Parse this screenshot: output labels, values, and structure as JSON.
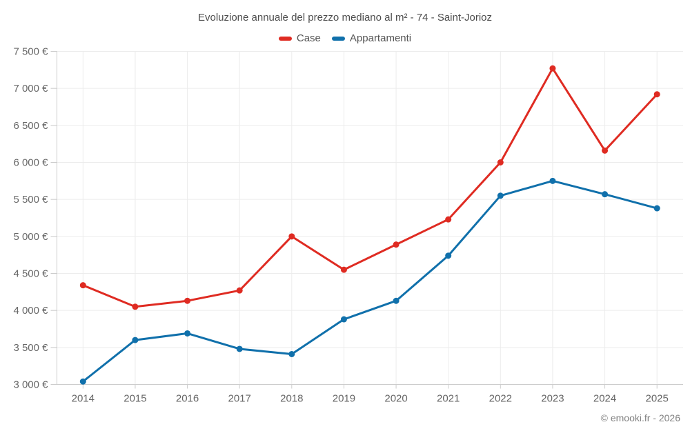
{
  "chart_data": {
    "type": "line",
    "title": "Evoluzione annuale del prezzo mediano al m² - 74 - Saint-Jorioz",
    "categories": [
      "2014",
      "2015",
      "2016",
      "2017",
      "2018",
      "2019",
      "2020",
      "2021",
      "2022",
      "2023",
      "2024",
      "2025"
    ],
    "series": [
      {
        "name": "Case",
        "color": "#df2b22",
        "values": [
          4340,
          4050,
          4130,
          4270,
          5000,
          4550,
          4890,
          5230,
          6000,
          7270,
          6160,
          6920
        ]
      },
      {
        "name": "Appartamenti",
        "color": "#1070ab",
        "values": [
          3040,
          3600,
          3690,
          3480,
          3410,
          3880,
          4130,
          4740,
          5550,
          5750,
          5570,
          5380
        ]
      }
    ],
    "ylim": [
      3000,
      7500
    ],
    "y_ticks": [
      {
        "value": 7500,
        "label": "7 500 €"
      },
      {
        "value": 7000,
        "label": "7 000 €"
      },
      {
        "value": 6500,
        "label": "6 500 €"
      },
      {
        "value": 6000,
        "label": "6 000 €"
      },
      {
        "value": 5500,
        "label": "5 500 €"
      },
      {
        "value": 5000,
        "label": "5 000 €"
      },
      {
        "value": 4500,
        "label": "4 500 €"
      },
      {
        "value": 4000,
        "label": "4 000 €"
      },
      {
        "value": 3500,
        "label": "3 500 €"
      },
      {
        "value": 3000,
        "label": "3 000 €"
      }
    ],
    "grid": true,
    "legend_position": "top",
    "xlabel": "",
    "ylabel": "",
    "credit": "© emooki.fr - 2026"
  }
}
